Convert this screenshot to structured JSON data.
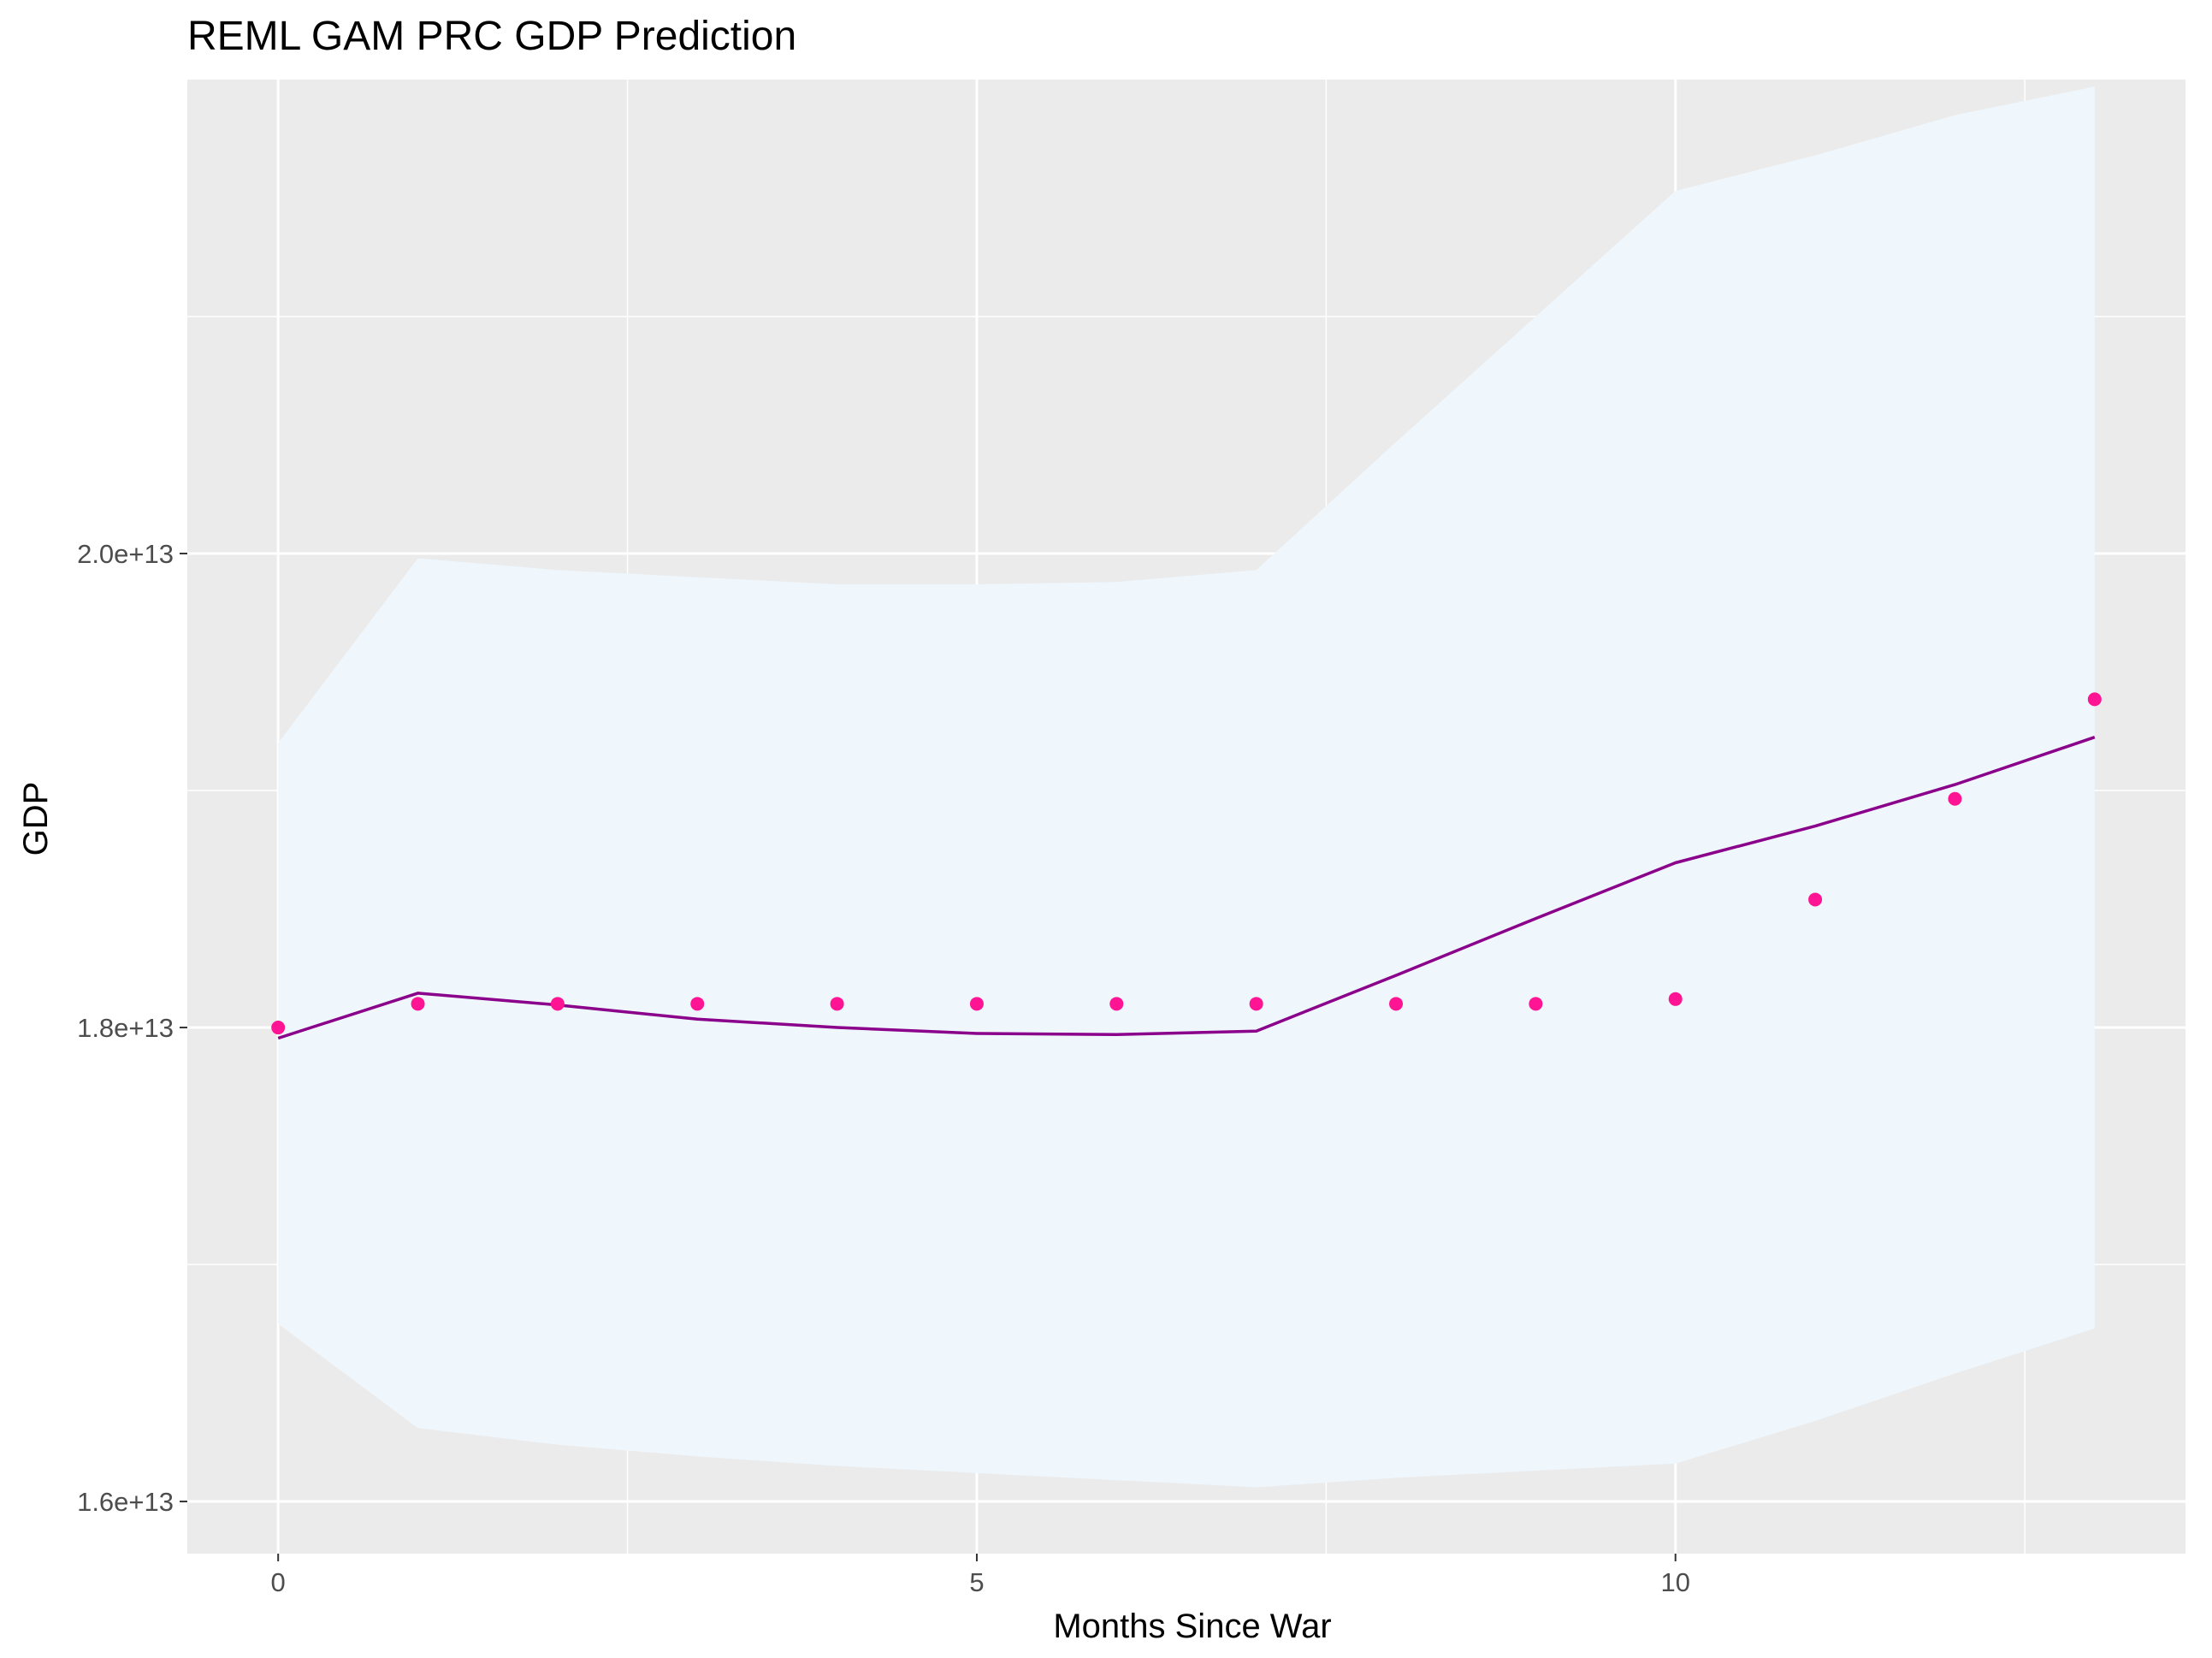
{
  "chart_data": {
    "type": "line",
    "title": "REML GAM PRC GDP Prediction",
    "xlabel": "Months Since War",
    "ylabel": "GDP",
    "xlim": [
      -0.65,
      13.65
    ],
    "ylim": [
      15780000000000.0,
      22000000000000.0
    ],
    "x_major_ticks": [
      0,
      5,
      10
    ],
    "x_minor_ticks": [
      2.5,
      7.5,
      12.5
    ],
    "x_tick_labels": [
      "0",
      "5",
      "10"
    ],
    "y_major_ticks": [
      16000000000000.0,
      18000000000000.0,
      20000000000000.0
    ],
    "y_minor_ticks": [
      17000000000000.0,
      19000000000000.0,
      21000000000000.0
    ],
    "y_tick_labels": [
      "1.6e+13",
      "1.8e+13",
      "2.0e+13"
    ],
    "grid": true,
    "colors": {
      "panel": "#ebebeb",
      "grid": "#ffffff",
      "ribbon": "#eff7fd",
      "line": "#8b008b",
      "points": "#ff1493",
      "tick": "#333333"
    },
    "series": [
      {
        "type": "ribbon",
        "x": [
          0,
          1,
          2,
          3,
          4,
          5,
          6,
          7,
          8,
          9,
          10,
          11,
          12,
          13
        ],
        "lower": [
          16750000000000.0,
          16310000000000.0,
          16240000000000.0,
          16190000000000.0,
          16150000000000.0,
          16120000000000.0,
          16090000000000.0,
          16060000000000.0,
          16100000000000.0,
          16130000000000.0,
          16160000000000.0,
          16340000000000.0,
          16540000000000.0,
          16730000000000.0
        ],
        "upper": [
          19200000000000.0,
          19980000000000.0,
          19930000000000.0,
          19900000000000.0,
          19870000000000.0,
          19870000000000.0,
          19880000000000.0,
          19930000000000.0,
          20470000000000.0,
          21000000000000.0,
          21530000000000.0,
          21680000000000.0,
          21850000000000.0,
          21970000000000.0
        ]
      },
      {
        "type": "line",
        "x": [
          0,
          1,
          2,
          3,
          4,
          5,
          6,
          7,
          8,
          9,
          10,
          11,
          12,
          13
        ],
        "y": [
          17955000000000.0,
          18145000000000.0,
          18095000000000.0,
          18035000000000.0,
          18000000000000.0,
          17975000000000.0,
          17970000000000.0,
          17985000000000.0,
          18220000000000.0,
          18460000000000.0,
          18695000000000.0,
          18850000000000.0,
          19025000000000.0,
          19225000000000.0
        ]
      },
      {
        "type": "scatter",
        "x": [
          0,
          1,
          2,
          3,
          4,
          5,
          6,
          7,
          8,
          9,
          10,
          11,
          12,
          13
        ],
        "y": [
          18000000000000.0,
          18100000000000.0,
          18100000000000.0,
          18100000000000.0,
          18100000000000.0,
          18100000000000.0,
          18100000000000.0,
          18100000000000.0,
          18100000000000.0,
          18100000000000.0,
          18120000000000.0,
          18540000000000.0,
          18965000000000.0,
          19385000000000.0
        ]
      }
    ]
  }
}
